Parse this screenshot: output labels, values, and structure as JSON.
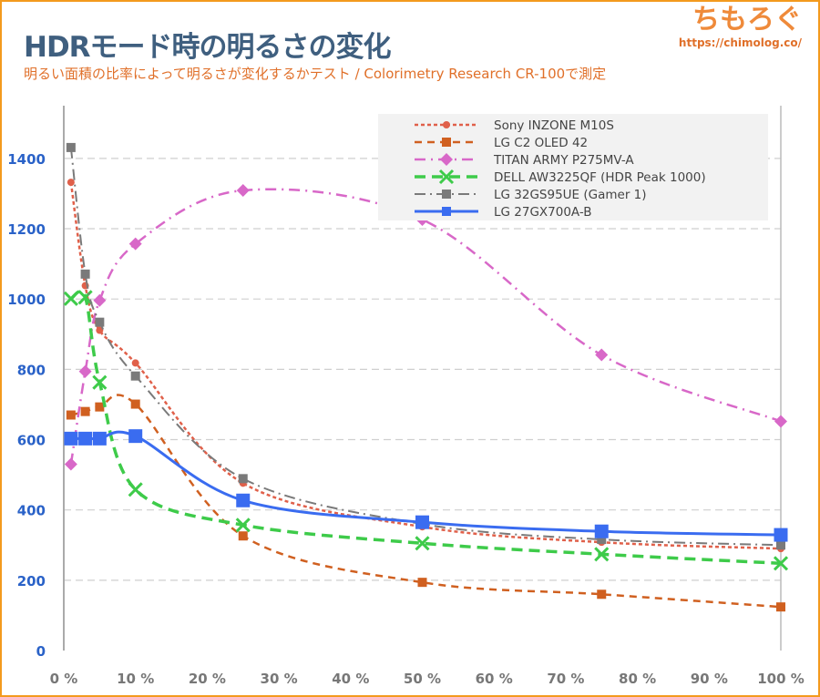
{
  "header": {
    "title": "HDRモード時の明るさの変化",
    "subtitle": "明るい面積の比率によって明るさが変化するかテスト / Colorimetry Research CR-100で測定",
    "logo": "ちもろぐ",
    "url": "https://chimolog.co/"
  },
  "chart_data": {
    "type": "line",
    "title": "HDRモード時の明るさの変化",
    "xlabel": "",
    "ylabel": "",
    "x": [
      1,
      3,
      5,
      10,
      25,
      50,
      75,
      100
    ],
    "xlim": [
      0,
      100
    ],
    "ylim": [
      0,
      1550
    ],
    "xticks": [
      "0 %",
      "10 %",
      "20 %",
      "30 %",
      "40 %",
      "50 %",
      "60 %",
      "70 %",
      "80 %",
      "90 %",
      "100 %"
    ],
    "yticks": [
      "0",
      "200",
      "400",
      "600",
      "800",
      "1000",
      "1200",
      "1400"
    ],
    "legend_position": "top-right",
    "grid": true,
    "series": [
      {
        "name": "Sony INZONE M10S",
        "color": "#e0604a",
        "dash": "4,3",
        "marker": "circle",
        "width": 2.5,
        "values": [
          1332,
          1038,
          911,
          818,
          476,
          352,
          308,
          290
        ]
      },
      {
        "name": "LG C2 OLED 42",
        "color": "#d06020",
        "dash": "8,6",
        "marker": "square",
        "width": 2.5,
        "values": [
          670,
          680,
          693,
          701,
          326,
          194,
          160,
          124
        ]
      },
      {
        "name": "TITAN ARMY P275MV-A",
        "color": "#d868c8",
        "dash": "12,6,2,6",
        "marker": "diamond",
        "width": 2.5,
        "values": [
          530,
          794,
          996,
          1157,
          1309,
          1226,
          841,
          652
        ]
      },
      {
        "name": "DELL AW3225QF (HDR Peak 1000)",
        "color": "#3ecb4a",
        "dash": "12,7",
        "marker": "x",
        "width": 3.5,
        "values": [
          1001,
          1005,
          763,
          458,
          357,
          305,
          274,
          248
        ]
      },
      {
        "name": "LG 32GS95UE (Gamer 1)",
        "color": "#7a7a7a",
        "dash": "12,5,2,5",
        "marker": "square",
        "width": 2,
        "values": [
          1431,
          1071,
          934,
          781,
          489,
          360,
          316,
          300
        ]
      },
      {
        "name": "LG 27GX700A-B",
        "color": "#3a6cf0",
        "dash": "",
        "marker": "bigsquare",
        "width": 3,
        "values": [
          603,
          603,
          603,
          610,
          427,
          365,
          339,
          329
        ]
      }
    ]
  }
}
